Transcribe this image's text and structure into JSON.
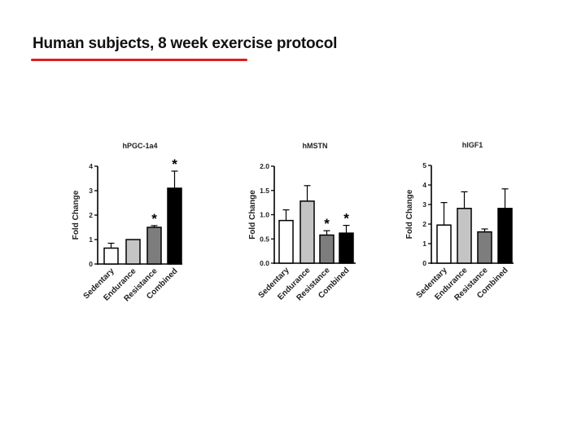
{
  "slide": {
    "title": "Human subjects, 8 week exercise protocol",
    "underline_color": "#e01c1c"
  },
  "chart_data": [
    {
      "type": "bar",
      "title": "hPGC-1a4",
      "ylabel": "Fold Change",
      "xlabel": "",
      "categories": [
        "Sedentary",
        "Endurance",
        "Resistance",
        "Combined"
      ],
      "values": [
        0.65,
        1.0,
        1.5,
        3.1
      ],
      "errors": [
        0.2,
        0.0,
        0.07,
        0.7
      ],
      "significance": [
        "",
        "",
        "*",
        "*"
      ],
      "ylim": [
        0,
        4
      ],
      "yticks": [
        "0",
        "1",
        "2",
        "3",
        "4"
      ],
      "bar_colors": [
        "#ffffff",
        "#c4c4c4",
        "#7d7d7d",
        "#000000"
      ]
    },
    {
      "type": "bar",
      "title": "hMSTN",
      "ylabel": "Fold Change",
      "xlabel": "",
      "categories": [
        "Sedentary",
        "Endurance",
        "Resistance",
        "Combined"
      ],
      "values": [
        0.88,
        1.28,
        0.58,
        0.62
      ],
      "errors": [
        0.22,
        0.32,
        0.09,
        0.16
      ],
      "significance": [
        "",
        "",
        "*",
        "*"
      ],
      "ylim": [
        0,
        2.0
      ],
      "yticks": [
        "0.0",
        "0.5",
        "1.0",
        "1.5",
        "2.0"
      ],
      "bar_colors": [
        "#ffffff",
        "#c4c4c4",
        "#7d7d7d",
        "#000000"
      ]
    },
    {
      "type": "bar",
      "title": "hIGF1",
      "ylabel": "Fold Change",
      "xlabel": "",
      "categories": [
        "Sedentary",
        "Endurance",
        "Resistance",
        "Combined"
      ],
      "values": [
        1.95,
        2.8,
        1.6,
        2.8
      ],
      "errors": [
        1.15,
        0.85,
        0.15,
        1.0
      ],
      "significance": [
        "",
        "",
        "",
        ""
      ],
      "ylim": [
        0,
        5
      ],
      "yticks": [
        "0",
        "1",
        "2",
        "3",
        "4",
        "5"
      ],
      "bar_colors": [
        "#ffffff",
        "#c4c4c4",
        "#7d7d7d",
        "#000000"
      ]
    }
  ]
}
